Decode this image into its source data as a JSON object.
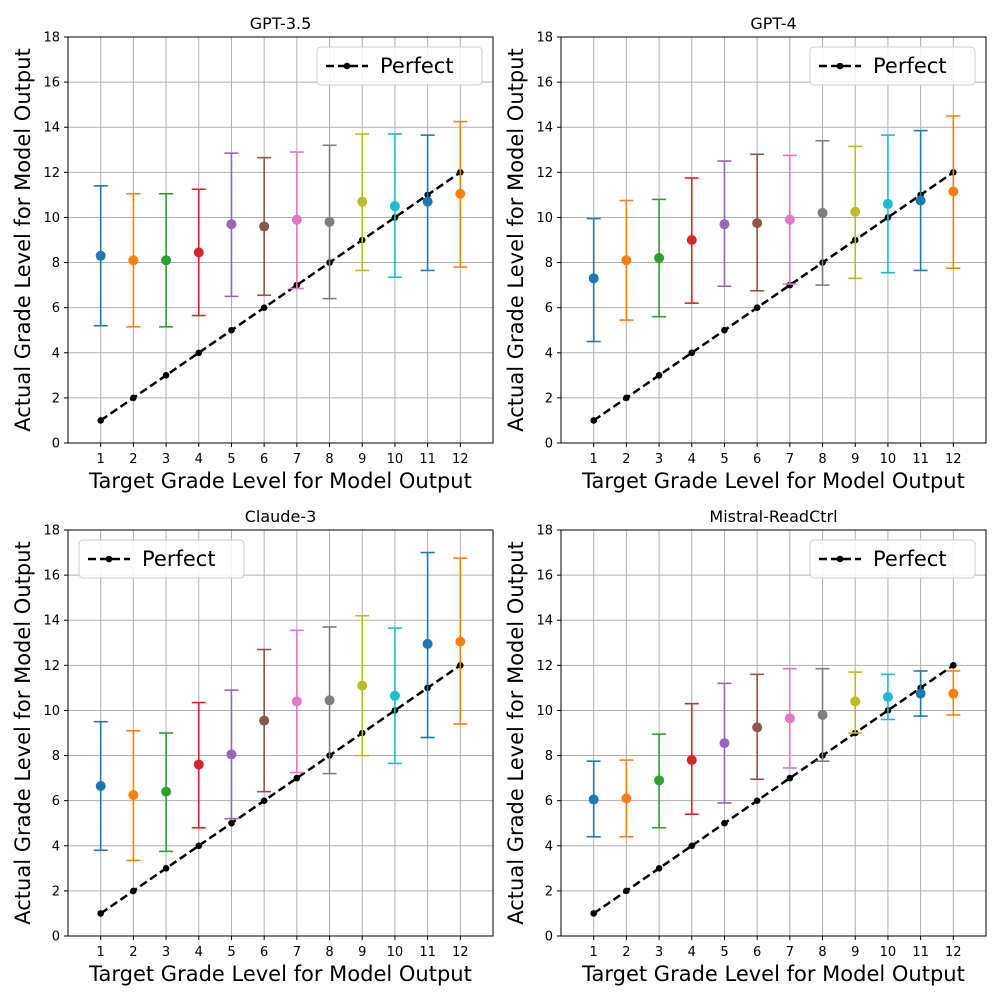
{
  "chart_data": [
    {
      "type": "errorbar",
      "title": "GPT-3.5",
      "xlabel": "Target Grade Level for Model Output",
      "ylabel": "Actual Grade Level for Model Output",
      "x": [
        1,
        2,
        3,
        4,
        5,
        6,
        7,
        8,
        9,
        10,
        11,
        12
      ],
      "y": [
        8.3,
        8.1,
        8.1,
        8.45,
        9.7,
        9.6,
        9.9,
        9.8,
        10.7,
        10.5,
        10.7,
        11.05
      ],
      "err_low": [
        5.2,
        5.15,
        5.15,
        5.65,
        6.5,
        6.55,
        6.85,
        6.4,
        7.65,
        7.35,
        7.65,
        7.8
      ],
      "err_high": [
        11.4,
        11.05,
        11.05,
        11.25,
        12.85,
        12.65,
        12.9,
        13.2,
        13.7,
        13.7,
        13.65,
        14.25
      ],
      "ylim": [
        0,
        18
      ],
      "yticks": [
        0,
        2,
        4,
        6,
        8,
        10,
        12,
        14,
        16,
        18
      ],
      "grid": true,
      "legend": {
        "label": "Perfect",
        "position": "top-right"
      }
    },
    {
      "type": "errorbar",
      "title": "GPT-4",
      "xlabel": "Target Grade Level for Model Output",
      "ylabel": "Actual Grade Level for Model Output",
      "x": [
        1,
        2,
        3,
        4,
        5,
        6,
        7,
        8,
        9,
        10,
        11,
        12
      ],
      "y": [
        7.3,
        8.1,
        8.2,
        9.0,
        9.7,
        9.75,
        9.9,
        10.2,
        10.25,
        10.6,
        10.75,
        11.15
      ],
      "err_low": [
        4.5,
        5.45,
        5.6,
        6.2,
        6.95,
        6.75,
        7.05,
        7.0,
        7.3,
        7.55,
        7.65,
        7.75
      ],
      "err_high": [
        9.95,
        10.75,
        10.8,
        11.75,
        12.5,
        12.8,
        12.75,
        13.4,
        13.15,
        13.65,
        13.85,
        14.5
      ],
      "ylim": [
        0,
        18
      ],
      "yticks": [
        0,
        2,
        4,
        6,
        8,
        10,
        12,
        14,
        16,
        18
      ],
      "grid": true,
      "legend": {
        "label": "Perfect",
        "position": "top-right"
      }
    },
    {
      "type": "errorbar",
      "title": "Claude-3",
      "xlabel": "Target Grade Level for Model Output",
      "ylabel": "Actual Grade Level for Model Output",
      "x": [
        1,
        2,
        3,
        4,
        5,
        6,
        7,
        8,
        9,
        10,
        11,
        12
      ],
      "y": [
        6.65,
        6.25,
        6.4,
        7.6,
        8.05,
        9.55,
        10.4,
        10.45,
        11.1,
        10.65,
        12.95,
        13.05
      ],
      "err_low": [
        3.8,
        3.35,
        3.75,
        4.8,
        5.2,
        6.4,
        7.25,
        7.2,
        8.0,
        7.65,
        8.8,
        9.4
      ],
      "err_high": [
        9.5,
        9.1,
        9.0,
        10.35,
        10.9,
        12.7,
        13.55,
        13.7,
        14.2,
        13.65,
        17.0,
        16.75
      ],
      "ylim": [
        0,
        18
      ],
      "yticks": [
        0,
        2,
        4,
        6,
        8,
        10,
        12,
        14,
        16,
        18
      ],
      "grid": true,
      "legend": {
        "label": "Perfect",
        "position": "top-left"
      }
    },
    {
      "type": "errorbar",
      "title": "Mistral-ReadCtrl",
      "xlabel": "Target Grade Level for Model Output",
      "ylabel": "Actual Grade Level for Model Output",
      "x": [
        1,
        2,
        3,
        4,
        5,
        6,
        7,
        8,
        9,
        10,
        11,
        12
      ],
      "y": [
        6.05,
        6.1,
        6.9,
        7.8,
        8.55,
        9.25,
        9.65,
        9.8,
        10.4,
        10.6,
        10.75,
        10.75
      ],
      "err_low": [
        4.4,
        4.4,
        4.8,
        5.4,
        5.9,
        6.95,
        7.45,
        7.75,
        9.0,
        9.6,
        9.75,
        9.8
      ],
      "err_high": [
        7.75,
        7.8,
        8.95,
        10.3,
        11.2,
        11.6,
        11.85,
        11.85,
        11.7,
        11.6,
        11.75,
        11.75
      ],
      "ylim": [
        0,
        18
      ],
      "yticks": [
        0,
        2,
        4,
        6,
        8,
        10,
        12,
        14,
        16,
        18
      ],
      "grid": true,
      "legend": {
        "label": "Perfect",
        "position": "top-right"
      }
    }
  ],
  "colors": [
    "#1f77b4",
    "#ff7f0e",
    "#2ca02c",
    "#d62728",
    "#9467bd",
    "#8c564b",
    "#e377c2",
    "#7f7f7f",
    "#bcbd22",
    "#17becf",
    "#1f77b4",
    "#ff7f0e"
  ],
  "perfect_color": "#000000",
  "grid_color": "#b0b0b0"
}
